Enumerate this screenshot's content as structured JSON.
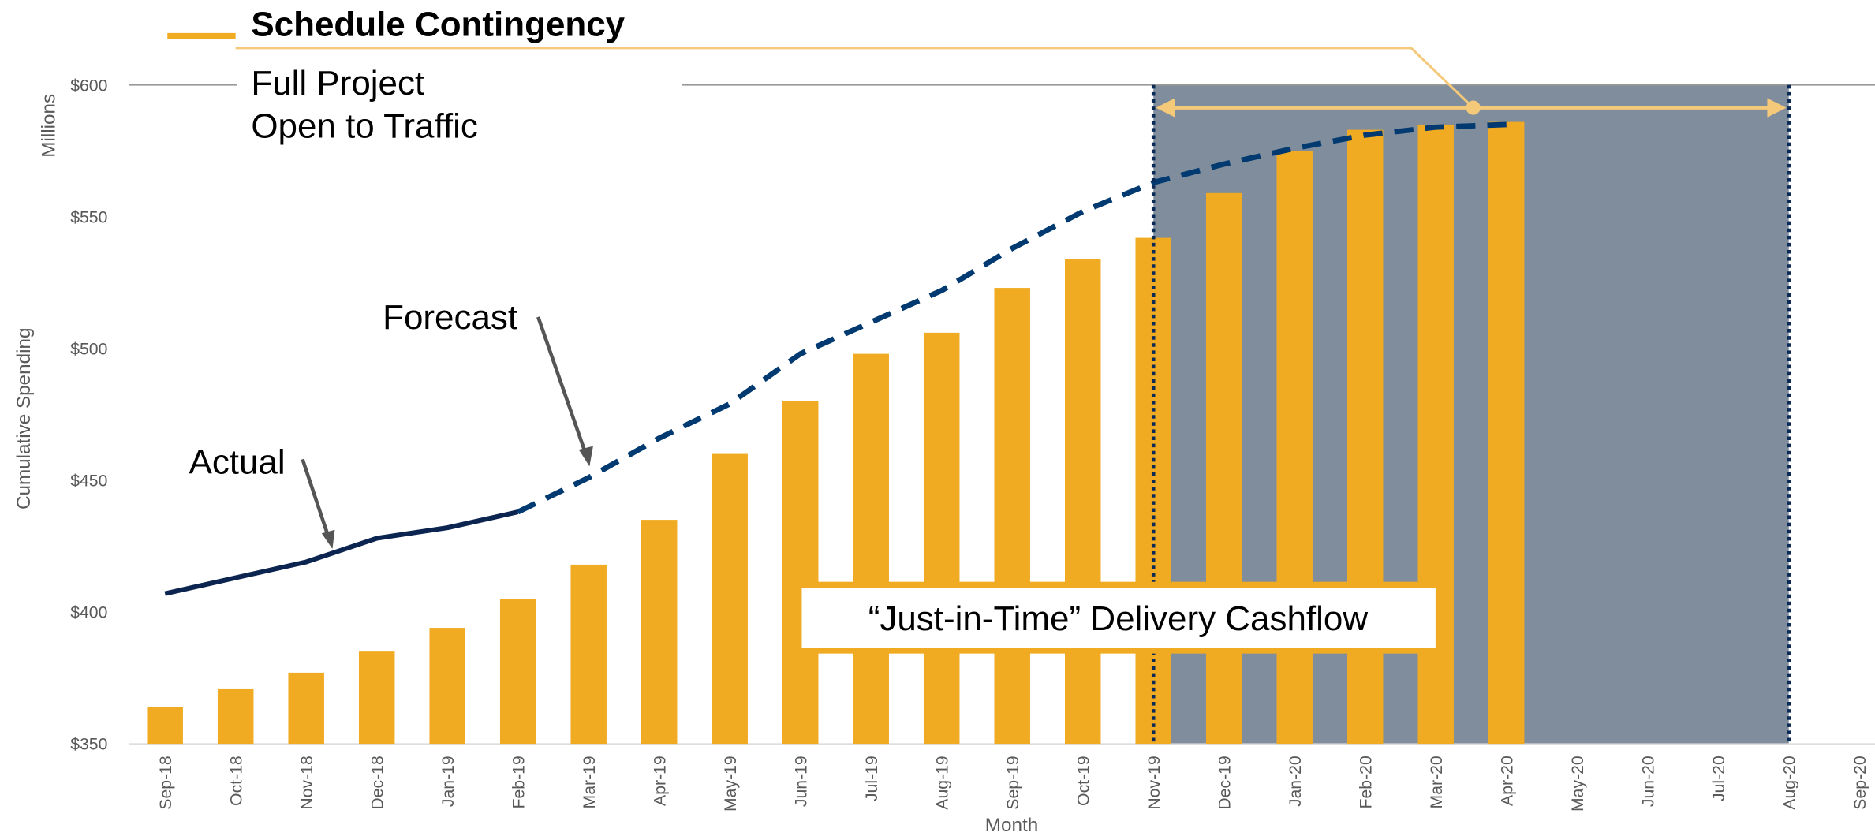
{
  "chart_data": {
    "type": "bar",
    "annotations": {
      "contingency": "Schedule Contingency",
      "open": [
        "Full Project",
        "Open to Traffic"
      ],
      "cashflow": "“Just-in-Time” Delivery Cashflow"
    },
    "xlabel": "Month",
    "ylabel": "Cumulative Spending",
    "yunit": "Millions",
    "categories": [
      "Sep-18",
      "Oct-18",
      "Nov-18",
      "Dec-18",
      "Jan-19",
      "Feb-19",
      "Mar-19",
      "Apr-19",
      "May-19",
      "Jun-19",
      "Jul-19",
      "Aug-19",
      "Sep-19",
      "Oct-19",
      "Nov-19",
      "Dec-19",
      "Jan-20",
      "Feb-20",
      "Mar-20",
      "Apr-20",
      "May-20",
      "Jun-20",
      "Jul-20",
      "Aug-20",
      "Sep-20"
    ],
    "series": [
      {
        "kind": "bar",
        "color": "#f0ab22",
        "values": [
          364,
          371,
          377,
          385,
          394,
          405,
          418,
          435,
          460,
          480,
          498,
          506,
          523,
          534,
          542,
          559,
          575,
          583,
          585,
          586,
          null,
          null,
          null,
          null,
          null
        ]
      },
      {
        "kind": "line",
        "name": "Actual",
        "color": "#0b2550",
        "values": [
          407,
          413,
          419,
          428,
          432,
          438,
          null,
          null,
          null,
          null,
          null,
          null,
          null,
          null,
          null,
          null,
          null,
          null,
          null,
          null,
          null,
          null,
          null,
          null,
          null
        ]
      },
      {
        "kind": "dashed",
        "name": "Forecast",
        "color": "#003a70",
        "values": [
          null,
          null,
          null,
          null,
          null,
          438,
          451,
          466,
          479,
          498,
          510,
          522,
          538,
          552,
          563,
          570,
          576,
          581,
          584,
          585,
          null,
          null,
          null,
          null,
          null
        ]
      }
    ],
    "contingency_color": "#f5c97a",
    "shade_color": "#7f8d9c",
    "ylim": [
      350,
      600
    ],
    "yticks": [
      {
        "value": 350,
        "label": "$350"
      },
      {
        "value": 400,
        "label": "$400"
      },
      {
        "value": 450,
        "label": "$450"
      },
      {
        "value": 500,
        "label": "$500"
      },
      {
        "value": 550,
        "label": "$550"
      },
      {
        "value": 600,
        "label": "$600"
      }
    ]
  }
}
